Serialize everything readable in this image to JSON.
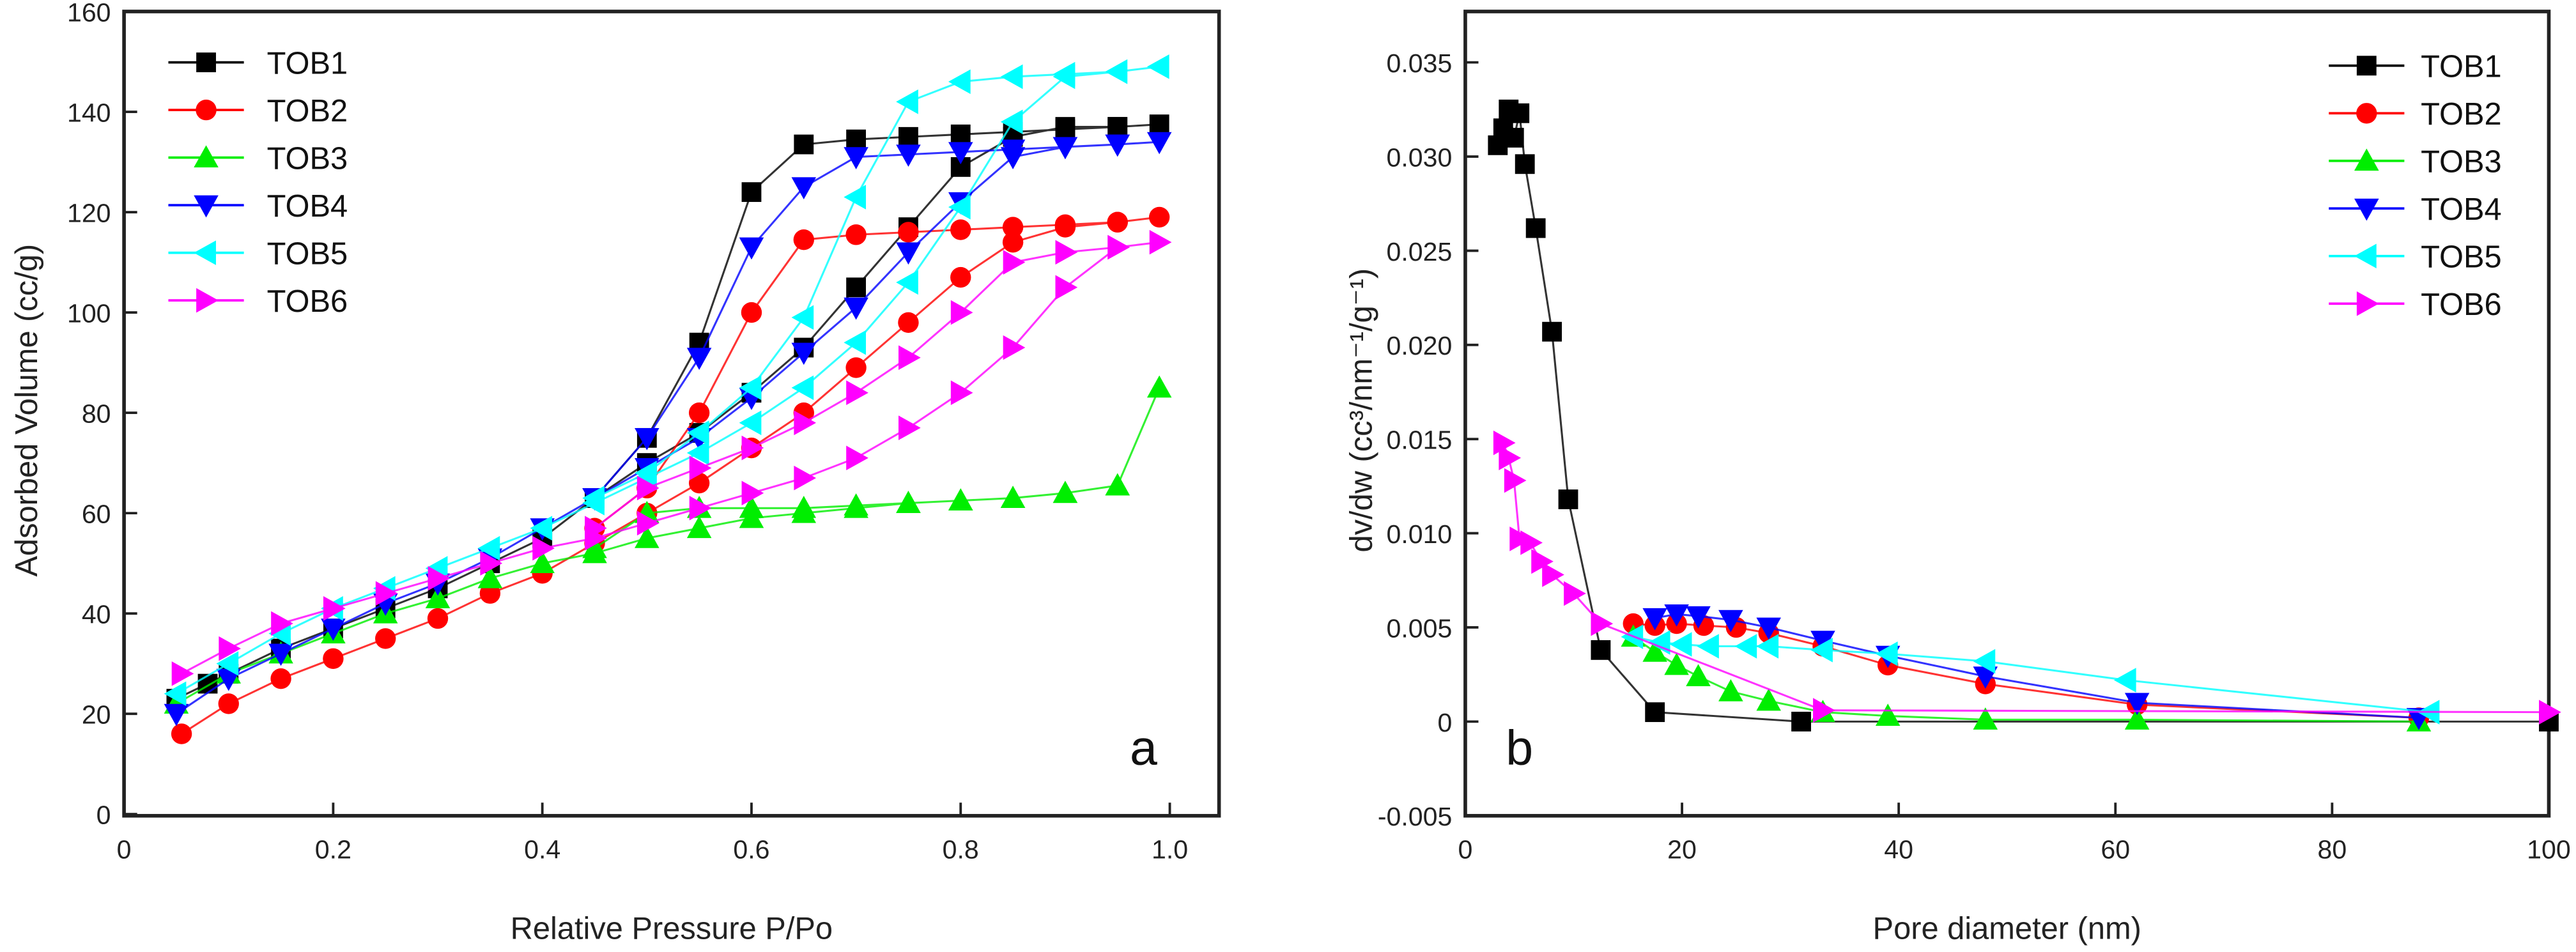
{
  "chart_data": [
    {
      "type": "line",
      "panel_label": "a",
      "xlabel": "Relative Pressure P/Po",
      "ylabel": "Adsorbed Volume (cc/g)",
      "xlim": [
        0,
        1.05
      ],
      "ylim": [
        0,
        160
      ],
      "xticks": [
        "0",
        "0.2",
        "0.4",
        "0.6",
        "0.8",
        "1.0"
      ],
      "xtick_values": [
        0,
        0.2,
        0.4,
        0.6,
        0.8,
        1.0
      ],
      "yticks": [
        "0",
        "20",
        "40",
        "60",
        "80",
        "100",
        "120",
        "140",
        "160"
      ],
      "ytick_values": [
        0,
        20,
        40,
        60,
        80,
        100,
        120,
        140,
        160
      ],
      "legend_position": "top-left",
      "series": [
        {
          "name": "TOB1",
          "color": "#000000",
          "marker": "square",
          "x": [
            0.05,
            0.08,
            0.1,
            0.15,
            0.2,
            0.25,
            0.3,
            0.35,
            0.4,
            0.45,
            0.5,
            0.55,
            0.6,
            0.65,
            0.7,
            0.75,
            0.8,
            0.85,
            0.9,
            0.95,
            0.99,
            0.95,
            0.9,
            0.85,
            0.8,
            0.75,
            0.7,
            0.65,
            0.6,
            0.55,
            0.5,
            0.45
          ],
          "y": [
            23,
            26,
            28,
            33,
            37,
            41,
            45,
            50,
            55,
            63,
            70,
            76,
            84,
            93,
            105,
            117,
            129,
            135,
            137,
            137,
            137.5,
            137,
            136.5,
            136,
            135.5,
            135,
            134.5,
            133.5,
            124,
            94,
            75,
            63
          ]
        },
        {
          "name": "TOB2",
          "color": "#ff0000",
          "marker": "circle",
          "x": [
            0.055,
            0.1,
            0.15,
            0.2,
            0.25,
            0.3,
            0.35,
            0.4,
            0.45,
            0.5,
            0.55,
            0.6,
            0.65,
            0.7,
            0.75,
            0.8,
            0.85,
            0.9,
            0.95,
            0.99,
            0.95,
            0.9,
            0.85,
            0.8,
            0.75,
            0.7,
            0.65,
            0.6,
            0.55,
            0.5,
            0.45
          ],
          "y": [
            16,
            22,
            27,
            31,
            35,
            39,
            44,
            48,
            54,
            60,
            66,
            73,
            80,
            89,
            98,
            107,
            114,
            117,
            118,
            119,
            118,
            117.5,
            117,
            116.5,
            116,
            115.5,
            114.5,
            100,
            80,
            65,
            57
          ]
        },
        {
          "name": "TOB3",
          "color": "#00ee00",
          "marker": "triangle-up",
          "x": [
            0.05,
            0.1,
            0.15,
            0.2,
            0.25,
            0.3,
            0.35,
            0.4,
            0.45,
            0.5,
            0.55,
            0.6,
            0.65,
            0.7,
            0.75,
            0.8,
            0.85,
            0.9,
            0.95,
            0.99,
            0.95,
            0.9,
            0.85,
            0.8,
            0.75,
            0.7,
            0.65,
            0.6,
            0.55,
            0.5,
            0.45
          ],
          "y": [
            22,
            28,
            32,
            36,
            40,
            43,
            47,
            50,
            52,
            55,
            57,
            59,
            60,
            61,
            62,
            62.5,
            63,
            64,
            65.5,
            85,
            65.5,
            64,
            63,
            62.5,
            62,
            61.5,
            61,
            61,
            61,
            60,
            53
          ]
        },
        {
          "name": "TOB4",
          "color": "#0000ff",
          "marker": "triangle-down",
          "x": [
            0.05,
            0.1,
            0.15,
            0.2,
            0.25,
            0.3,
            0.35,
            0.4,
            0.45,
            0.5,
            0.55,
            0.6,
            0.65,
            0.7,
            0.75,
            0.8,
            0.85,
            0.9,
            0.95,
            0.99,
            0.95,
            0.9,
            0.85,
            0.8,
            0.75,
            0.7,
            0.65,
            0.6,
            0.55,
            0.5,
            0.45
          ],
          "y": [
            20,
            27,
            32,
            37,
            42,
            46,
            51,
            57,
            63,
            69,
            75,
            83,
            92,
            101,
            112,
            122,
            131,
            133,
            133.5,
            134,
            133.5,
            133,
            132.5,
            132,
            131.5,
            131,
            125,
            113,
            91,
            75,
            63
          ]
        },
        {
          "name": "TOB5",
          "color": "#00ffff",
          "marker": "triangle-left",
          "x": [
            0.05,
            0.1,
            0.15,
            0.2,
            0.25,
            0.3,
            0.35,
            0.4,
            0.45,
            0.5,
            0.55,
            0.6,
            0.65,
            0.7,
            0.75,
            0.8,
            0.85,
            0.9,
            0.95,
            0.99,
            0.95,
            0.9,
            0.85,
            0.8,
            0.75,
            0.7,
            0.65,
            0.6,
            0.55,
            0.5,
            0.45
          ],
          "y": [
            24,
            30,
            36,
            41,
            45,
            49,
            53,
            57,
            62,
            67,
            72,
            78,
            85,
            94,
            106,
            121,
            138,
            147,
            148,
            149,
            148,
            147.5,
            147,
            146,
            142,
            123,
            99,
            85,
            76,
            68,
            63
          ]
        },
        {
          "name": "TOB6",
          "color": "#ff00ff",
          "marker": "triangle-right",
          "x": [
            0.055,
            0.1,
            0.15,
            0.2,
            0.25,
            0.3,
            0.35,
            0.4,
            0.45,
            0.5,
            0.55,
            0.6,
            0.65,
            0.7,
            0.75,
            0.8,
            0.85,
            0.9,
            0.95,
            0.99,
            0.95,
            0.9,
            0.85,
            0.8,
            0.75,
            0.7,
            0.65,
            0.6,
            0.55,
            0.5,
            0.45
          ],
          "y": [
            28,
            33,
            38,
            41,
            44,
            47,
            50,
            53,
            55,
            58,
            61,
            64,
            67,
            71,
            77,
            84,
            93,
            105,
            113,
            114,
            113,
            112,
            110,
            100,
            91,
            84,
            78,
            73,
            69,
            65,
            57
          ]
        }
      ]
    },
    {
      "type": "line",
      "panel_label": "b",
      "xlabel": "Pore diameter (nm)",
      "ylabel": "dv/dw (cc³/nm⁻¹/g⁻¹)",
      "xlim": [
        0,
        100
      ],
      "ylim": [
        -0.005,
        0.035
      ],
      "xticks": [
        "0",
        "20",
        "40",
        "60",
        "80",
        "100"
      ],
      "xtick_values": [
        0,
        20,
        40,
        60,
        80,
        100
      ],
      "yticks": [
        "-0.005",
        "0",
        "0.005",
        "0.010",
        "0.015",
        "0.020",
        "0.025",
        "0.030",
        "0.035"
      ],
      "ytick_values": [
        -0.005,
        0,
        0.005,
        0.01,
        0.015,
        0.02,
        0.025,
        0.03,
        0.035
      ],
      "legend_position": "top-right",
      "series": [
        {
          "name": "TOB1",
          "color": "#000000",
          "marker": "square",
          "x": [
            3,
            3.5,
            4,
            4.5,
            5,
            5.5,
            6.5,
            8,
            9.5,
            12.5,
            17.5,
            31,
            100
          ],
          "y": [
            0.0306,
            0.0315,
            0.0325,
            0.031,
            0.0323,
            0.0296,
            0.0262,
            0.0207,
            0.0118,
            0.0038,
            0.0005,
            0.0,
            0.0
          ]
        },
        {
          "name": "TOB2",
          "color": "#ff0000",
          "marker": "circle",
          "x": [
            15.5,
            17.5,
            19.5,
            22,
            25,
            28,
            33,
            39,
            48,
            62,
            88
          ],
          "y": [
            0.0052,
            0.0051,
            0.0052,
            0.0051,
            0.005,
            0.0047,
            0.004,
            0.003,
            0.002,
            0.0009,
            0.0002
          ]
        },
        {
          "name": "TOB3",
          "color": "#00ee00",
          "marker": "triangle-up",
          "x": [
            15.5,
            17.5,
            19.5,
            21.5,
            24.5,
            28,
            33,
            39,
            48,
            62,
            88
          ],
          "y": [
            0.0045,
            0.0037,
            0.003,
            0.0024,
            0.0016,
            0.0011,
            0.0005,
            0.0003,
            0.0001,
            0.0001,
            0.0
          ]
        },
        {
          "name": "TOB4",
          "color": "#0000ff",
          "marker": "triangle-down",
          "x": [
            17.5,
            19.5,
            21.5,
            24.5,
            28,
            33,
            39,
            48,
            62,
            88
          ],
          "y": [
            0.0055,
            0.0057,
            0.0056,
            0.0054,
            0.005,
            0.0043,
            0.0035,
            0.0024,
            0.001,
            0.0002
          ]
        },
        {
          "name": "TOB5",
          "color": "#00ffff",
          "marker": "triangle-left",
          "x": [
            15.5,
            18,
            20,
            22.5,
            26,
            28,
            33,
            39,
            48,
            61,
            89
          ],
          "y": [
            0.0045,
            0.0042,
            0.0041,
            0.004,
            0.004,
            0.004,
            0.0038,
            0.0036,
            0.0032,
            0.0022,
            0.0005
          ]
        },
        {
          "name": "TOB6",
          "color": "#ff00ff",
          "marker": "triangle-right",
          "x": [
            3.5,
            4,
            4.5,
            5,
            6,
            7,
            8,
            10,
            12.5,
            33,
            100
          ],
          "y": [
            0.0148,
            0.014,
            0.0128,
            0.0097,
            0.0095,
            0.0085,
            0.0078,
            0.0068,
            0.0052,
            0.0006,
            0.0005
          ]
        }
      ]
    }
  ]
}
